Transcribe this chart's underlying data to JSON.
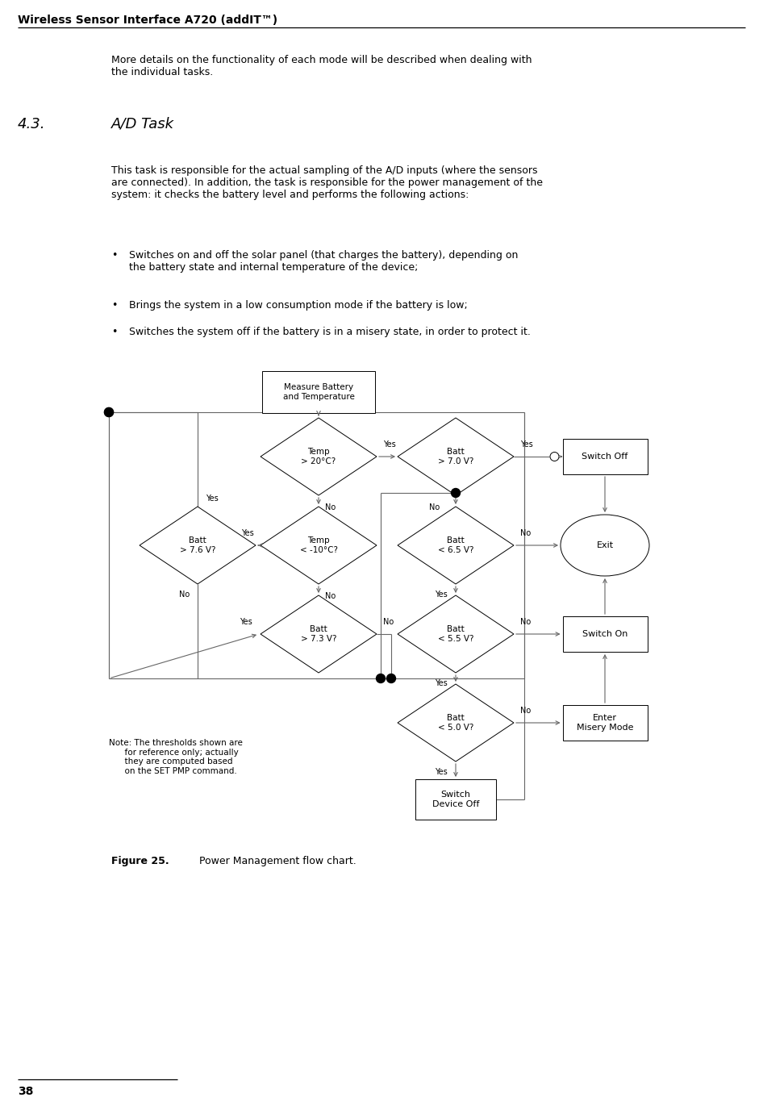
{
  "title": "Wireless Sensor Interface A720 (addIT™)",
  "page_number": "38",
  "figure_caption_bold": "Figure 25.",
  "figure_caption_rest": "      Power Management flow chart.",
  "section_num": "4.3.",
  "section_title": "A/D Task",
  "intro_text": "More details on the functionality of each mode will be described when dealing with\nthe individual tasks.",
  "body_text": "This task is responsible for the actual sampling of the A/D inputs (where the sensors\nare connected). In addition, the task is responsible for the power management of the\nsystem: it checks the battery level and performs the following actions:",
  "bullet1": "Switches on and off the solar panel (that charges the battery), depending on\nthe battery state and internal temperature of the device;",
  "bullet2": "Brings the system in a low consumption mode if the battery is low;",
  "bullet3": "Switches the system off if the battery is in a misery state, in order to protect it.",
  "note_text": "Note: The thresholds shown are\n      for reference only; actually\n      they are computed based\n      on the SET PMP command.",
  "bg_color": "#ffffff",
  "black": "#000000",
  "gray": "#666666",
  "dpi": 100,
  "fig_w": 9.46,
  "fig_h": 13.76
}
